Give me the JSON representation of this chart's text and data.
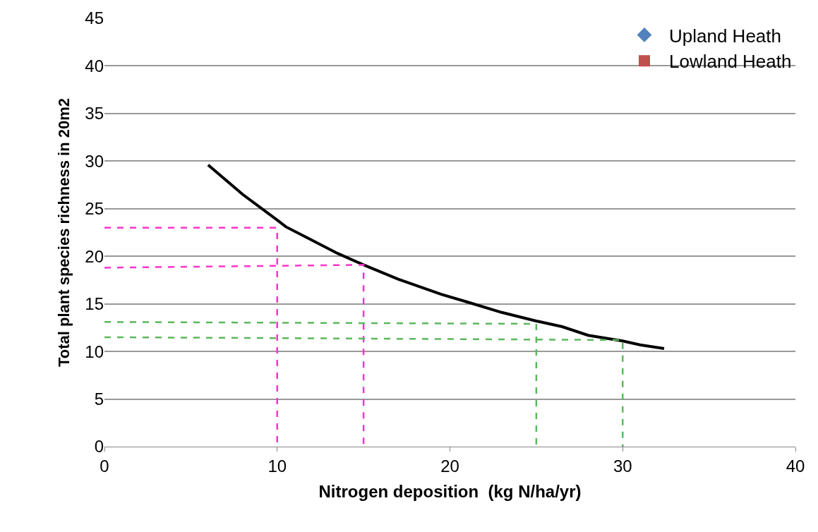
{
  "chart_data": {
    "type": "line",
    "xlabel": "Nitrogen deposition  (kg N/ha/yr)",
    "ylabel": "Total plant species richness in 20m2",
    "xlim": [
      0,
      40
    ],
    "xticks": [
      0,
      10,
      20,
      30,
      40
    ],
    "ylim": [
      0,
      45
    ],
    "yticks": [
      0,
      5,
      10,
      15,
      20,
      25,
      30,
      35,
      40,
      45
    ],
    "grid": "y",
    "legend": "top right",
    "series": [
      {
        "name": "Upland Heath",
        "type": "scatter",
        "marker": "diamond",
        "color": "#4f81bd",
        "x": [
          null
        ],
        "values": [
          null
        ]
      },
      {
        "name": "Lowland Heath",
        "type": "scatter",
        "marker": "square",
        "color": "#c0504d",
        "x": [
          null
        ],
        "values": [
          null
        ]
      },
      {
        "marker": "none",
        "line_style": "solid",
        "color": "#000000",
        "x": [
          6,
          8,
          10,
          10.5,
          12,
          13.5,
          15,
          17,
          19.5,
          21,
          23,
          25,
          26.5,
          28,
          29,
          30,
          31,
          32.4
        ],
        "values": [
          29.6,
          26.5,
          23.8,
          23.1,
          21.7,
          20.3,
          19.1,
          17.6,
          16.0,
          15.2,
          14.1,
          13.2,
          12.6,
          11.7,
          11.4,
          11.1,
          10.7,
          10.3
        ]
      },
      {
        "marker": "none",
        "line_style": "dashed",
        "color": "#ff33cc",
        "x": [
          0,
          10,
          10
        ],
        "values": [
          23,
          23,
          0
        ]
      },
      {
        "marker": "none",
        "line_style": "dashed",
        "color": "#ff33cc",
        "x": [
          0,
          15,
          15
        ],
        "values": [
          18.8,
          19.1,
          0
        ]
      },
      {
        "marker": "none",
        "line_style": "dashed",
        "color": "#5cb85c",
        "x": [
          0,
          25,
          25
        ],
        "values": [
          13.1,
          12.9,
          0
        ]
      },
      {
        "marker": "none",
        "line_style": "dashed",
        "color": "#5cb85c",
        "x": [
          0,
          30,
          30
        ],
        "values": [
          11.5,
          11.2,
          0
        ]
      }
    ]
  }
}
